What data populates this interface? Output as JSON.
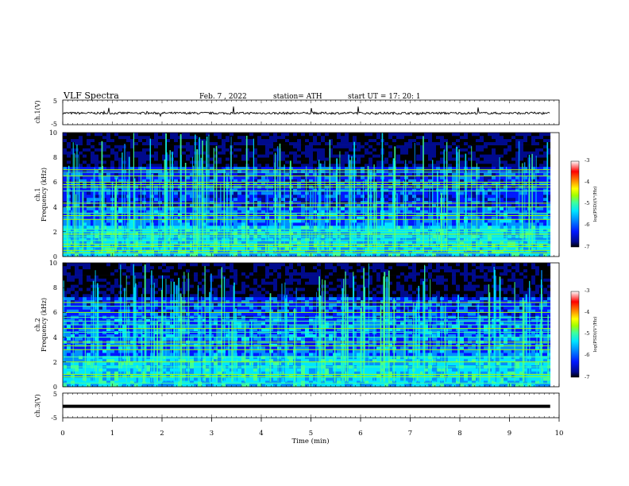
{
  "header": {
    "title": "VLF Spectra",
    "date": "Feb. 7 , 2022",
    "station": "station= ATH",
    "start_time": "start UT = 17: 20: 1"
  },
  "colors": {
    "background": "#ffffff",
    "axis": "#000000",
    "trace": "#000000",
    "spectrogram_scale": [
      "#000000",
      "#000a8c",
      "#0018ff",
      "#0090ff",
      "#00e6ff",
      "#40ff9a",
      "#a0ff00",
      "#ffff00",
      "#ff8000",
      "#ff0000",
      "#ffffff"
    ]
  },
  "chart_data": [
    {
      "type": "line",
      "name": "ch1-voltage",
      "ylabel": "ch.1(V)",
      "yticks": [
        "5",
        "-5"
      ],
      "ylim": [
        -5,
        5
      ],
      "xlim": [
        0,
        10
      ],
      "baseline_value": 0,
      "grid": false
    },
    {
      "type": "heatmap",
      "name": "ch1-spectrogram",
      "ylabel_line1": "ch.1",
      "ylabel_line2": "Frequency (kHz)",
      "yticks": [
        "0",
        "2",
        "4",
        "6",
        "8",
        "10"
      ],
      "ylim": [
        0,
        10
      ],
      "xlim": [
        0,
        9.82
      ],
      "colorbar": {
        "label": "log(PSD)(V²/Hz)",
        "ticks": [
          "-3",
          "-4",
          "-5",
          "-6",
          "-7"
        ],
        "range": [
          -7,
          -3
        ]
      },
      "narrowband_lines_khz": [
        0.3,
        0.5,
        0.8,
        1.0,
        1.3,
        1.6,
        1.8,
        2.0,
        2.2,
        3.0,
        3.3,
        3.5,
        4.0,
        4.3,
        5.3,
        5.6,
        5.8,
        6.0,
        6.5,
        6.8,
        7.0
      ]
    },
    {
      "type": "heatmap",
      "name": "ch2-spectrogram",
      "ylabel_line1": "ch.2",
      "ylabel_line2": "Frequency (kHz)",
      "yticks": [
        "0",
        "2",
        "4",
        "6",
        "8",
        "10"
      ],
      "ylim": [
        0,
        10
      ],
      "xlim": [
        0,
        9.82
      ],
      "colorbar": {
        "label": "log(PSD)(V²/Hz)",
        "ticks": [
          "-3",
          "-4",
          "-5",
          "-6",
          "-7"
        ],
        "range": [
          -7,
          -3
        ]
      },
      "narrowband_lines_khz": [
        0.3,
        0.8,
        1.0,
        1.6,
        2.0,
        2.4,
        3.0,
        3.3,
        3.6,
        4.0,
        4.4,
        4.7,
        5.0,
        5.3,
        5.6,
        6.0,
        6.5,
        6.8
      ]
    },
    {
      "type": "line",
      "name": "ch3-voltage",
      "ylabel": "ch.3(V)",
      "yticks": [
        "5",
        "-5"
      ],
      "ylim": [
        -5,
        5
      ],
      "xlim": [
        0,
        10
      ],
      "baseline_value": -0.2,
      "grid": false
    }
  ],
  "xaxis": {
    "label": "Time (min)",
    "ticks": [
      "0",
      "1",
      "2",
      "3",
      "4",
      "5",
      "6",
      "7",
      "8",
      "9",
      "10"
    ],
    "range": [
      0,
      10
    ]
  }
}
